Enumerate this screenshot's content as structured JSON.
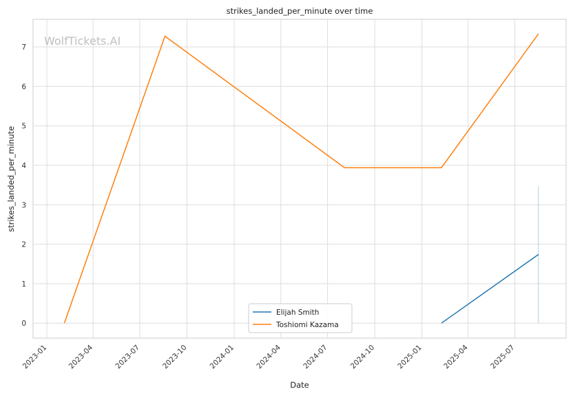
{
  "chart_data": {
    "type": "line",
    "title": "strikes_landed_per_minute over time",
    "xlabel": "Date",
    "ylabel": "strikes_landed_per_minute",
    "watermark": "WolfTickets.AI",
    "x_ticks": [
      "2023-01",
      "2023-04",
      "2023-07",
      "2023-10",
      "2024-01",
      "2024-04",
      "2024-07",
      "2024-10",
      "2025-01",
      "2025-04",
      "2025-07"
    ],
    "y_ticks": [
      0,
      1,
      2,
      3,
      4,
      5,
      6,
      7
    ],
    "xlim": [
      "2022-12-05",
      "2025-10-09"
    ],
    "ylim": [
      -0.38,
      7.7
    ],
    "grid": true,
    "legend_position": "bottom-center",
    "series": [
      {
        "name": "Elijah Smith",
        "color": "#1f77b4",
        "points": [
          {
            "x": "2025-02-08",
            "y": 0.0
          },
          {
            "x": "2025-08-16",
            "y": 1.74
          }
        ]
      },
      {
        "name": "Toshiomi Kazama",
        "color": "#ff7f0e",
        "points": [
          {
            "x": "2023-02-04",
            "y": 0.0
          },
          {
            "x": "2023-08-19",
            "y": 7.27
          },
          {
            "x": "2024-08-03",
            "y": 3.94
          },
          {
            "x": "2025-02-08",
            "y": 3.94
          },
          {
            "x": "2025-08-16",
            "y": 7.33
          }
        ]
      }
    ],
    "errorbar": {
      "x": "2025-08-16",
      "ylow": 0.0,
      "yhigh": 3.47,
      "color": "#a9cfe0"
    }
  }
}
